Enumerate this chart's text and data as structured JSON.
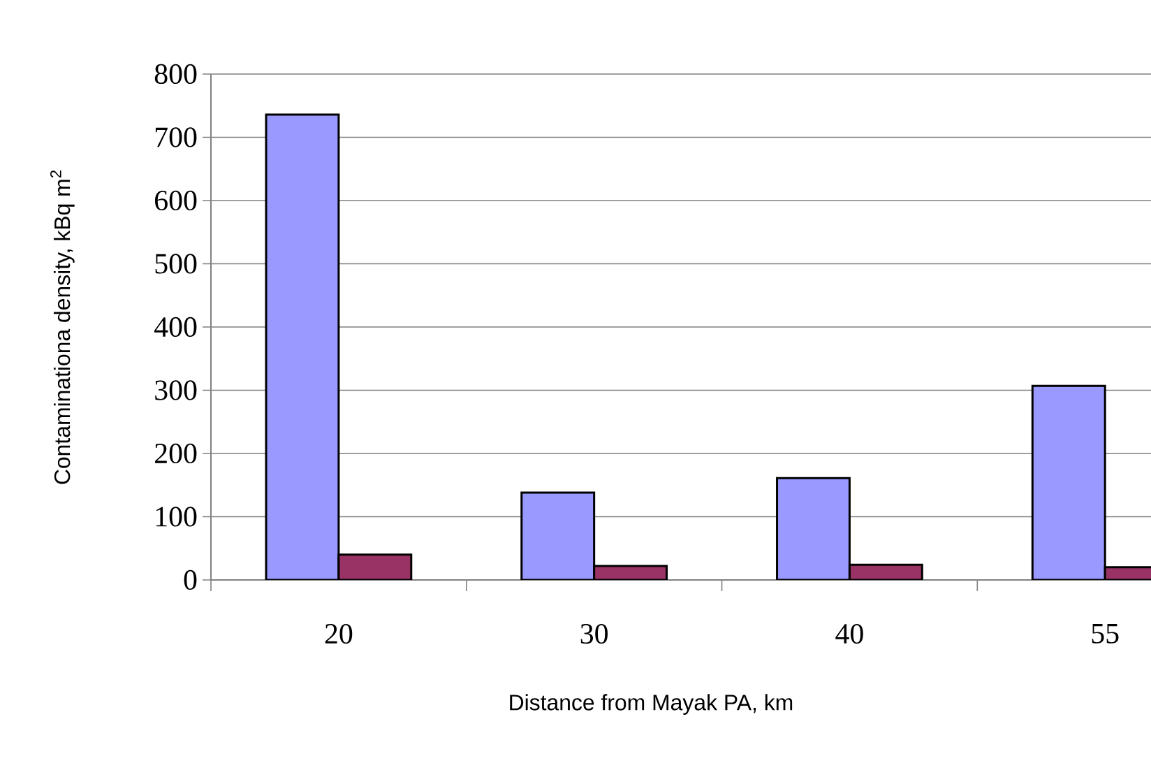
{
  "chart_data": {
    "type": "bar",
    "xlabel": "Distance from Mayak PA, km",
    "ylabel": "Contaminationa density, kBq m$^{2}$",
    "categories": [
      "20",
      "30",
      "40",
      "55"
    ],
    "series": [
      {
        "color": "#9999ff",
        "values": [
          736,
          138,
          161,
          307
        ]
      },
      {
        "color": "#993366",
        "values": [
          40,
          22,
          24,
          20
        ]
      }
    ],
    "ylim": [
      0,
      800
    ],
    "yticks": [
      0,
      100,
      200,
      300,
      400,
      500,
      600,
      700,
      800
    ],
    "grid": "y"
  }
}
